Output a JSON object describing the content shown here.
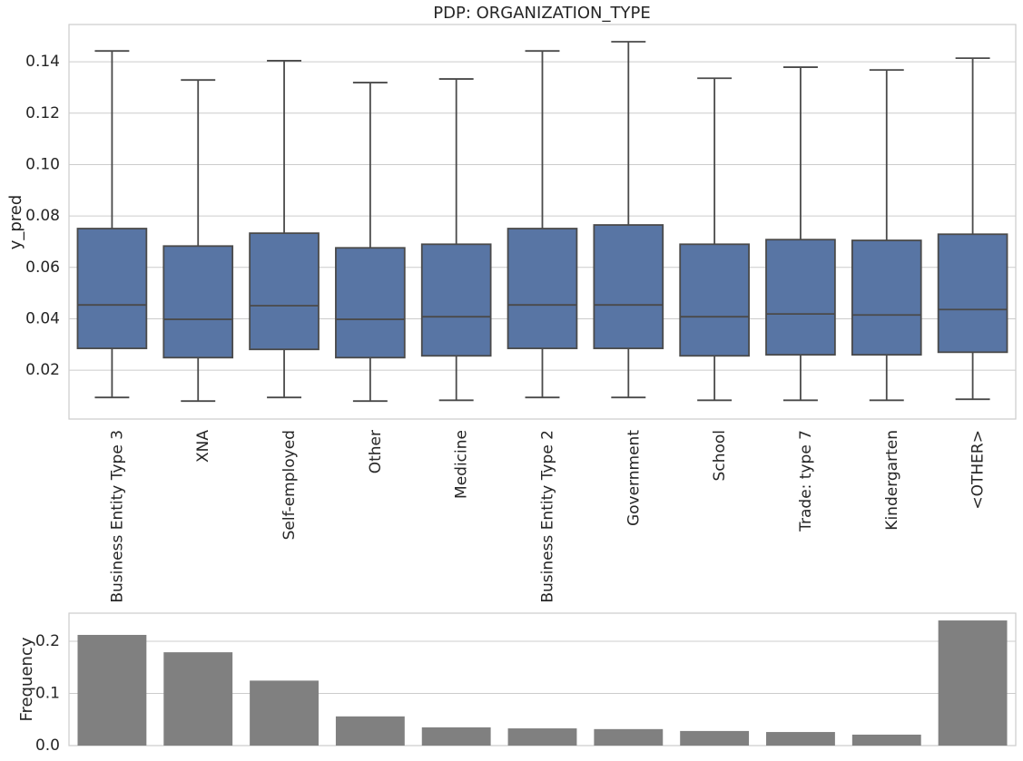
{
  "chart_data": [
    {
      "type": "box",
      "title": "PDP: ORGANIZATION_TYPE",
      "ylabel": "y_pred",
      "categories": [
        "Business Entity Type 3",
        "XNA",
        "Self-employed",
        "Other",
        "Medicine",
        "Business Entity Type 2",
        "Government",
        "School",
        "Trade: type 7",
        "Kindergarten",
        "<OTHER>"
      ],
      "whisker_low": [
        0.0094,
        0.008,
        0.0094,
        0.008,
        0.0083,
        0.0094,
        0.0094,
        0.0083,
        0.0083,
        0.0083,
        0.0087
      ],
      "q1": [
        0.0285,
        0.0249,
        0.0281,
        0.0249,
        0.0256,
        0.0285,
        0.0285,
        0.0256,
        0.026,
        0.026,
        0.027
      ],
      "median": [
        0.0454,
        0.0398,
        0.0451,
        0.0398,
        0.0408,
        0.0454,
        0.0454,
        0.0408,
        0.0419,
        0.0415,
        0.0436
      ],
      "q3": [
        0.0751,
        0.0683,
        0.0733,
        0.0676,
        0.069,
        0.0751,
        0.0765,
        0.069,
        0.0708,
        0.0705,
        0.0729
      ],
      "whisker_high": [
        0.1442,
        0.1329,
        0.1404,
        0.1319,
        0.1333,
        0.1442,
        0.1478,
        0.1336,
        0.1379,
        0.1368,
        0.1414
      ],
      "color": "#5875a4",
      "edge_color": "#4a4a4a",
      "ylim": [
        0.001,
        0.1545
      ],
      "yticks": [
        0.02,
        0.04,
        0.06,
        0.08,
        {
          "value": 0.1,
          "label": "0.10"
        },
        0.12,
        0.14
      ],
      "grid": true
    },
    {
      "type": "bar",
      "ylabel": "Frequency",
      "values": [
        0.2123,
        0.179,
        0.1246,
        0.056,
        0.035,
        0.033,
        0.0316,
        0.028,
        0.026,
        0.021,
        0.24
      ],
      "color": "#808080",
      "ylim": [
        0,
        0.254
      ],
      "yticks": [
        {
          "value": 0,
          "label": "0.0"
        },
        0.1,
        0.2
      ],
      "grid": true
    }
  ]
}
